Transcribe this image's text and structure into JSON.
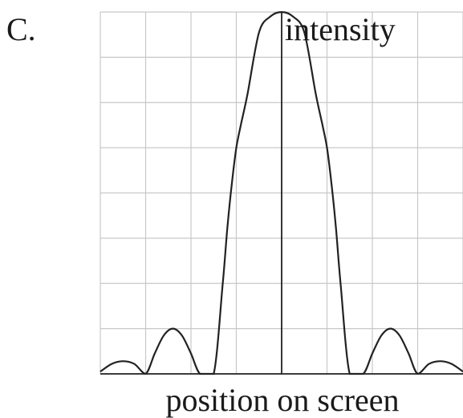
{
  "option_label": "C.",
  "chart_data": {
    "type": "line",
    "title": "",
    "xlabel": "position on screen",
    "ylabel": "intensity",
    "xlim": [
      -4,
      4
    ],
    "ylim": [
      0,
      8
    ],
    "grid": true,
    "series": [
      {
        "values_x": [
          -4.0,
          -3.75,
          -3.5,
          -3.25,
          -3.0,
          -2.8,
          -2.6,
          -2.4,
          -2.2,
          -2.0,
          -1.8,
          -1.5,
          -1.3,
          -1.2,
          -1.1,
          -1.0,
          -0.9,
          -0.75,
          -0.5,
          -0.25,
          0.0,
          0.25,
          0.5,
          0.75,
          0.9,
          1.0,
          1.1,
          1.2,
          1.3,
          1.5,
          1.8,
          2.0,
          2.2,
          2.4,
          2.6,
          2.8,
          3.0,
          3.25,
          3.5,
          3.75,
          4.0
        ],
        "values_y": [
          0.05,
          0.22,
          0.28,
          0.22,
          0.0,
          0.45,
          0.85,
          1.0,
          0.85,
          0.45,
          0.0,
          0.0,
          2.0,
          3.2,
          4.2,
          5.0,
          5.5,
          6.2,
          7.55,
          7.9,
          8.0,
          7.9,
          7.55,
          6.2,
          5.5,
          5.0,
          4.2,
          3.2,
          2.0,
          0.0,
          0.0,
          0.45,
          0.85,
          1.0,
          0.85,
          0.45,
          0.0,
          0.22,
          0.28,
          0.22,
          0.05
        ]
      }
    ]
  }
}
